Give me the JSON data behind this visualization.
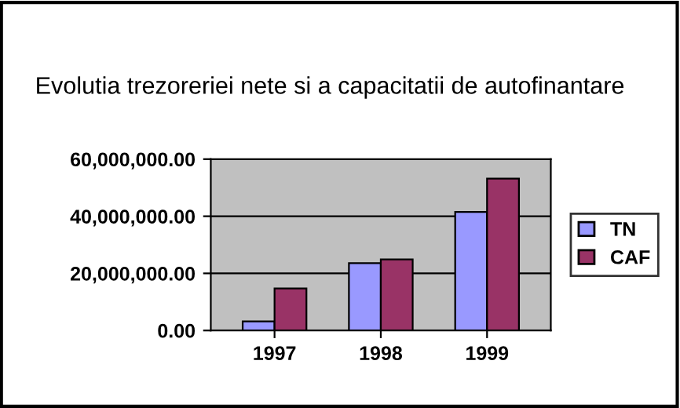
{
  "chart_data": {
    "type": "bar",
    "title": "Evolutia trezoreriei nete si a capacitatii de autofinantare",
    "categories": [
      "1997",
      "1998",
      "1999"
    ],
    "series": [
      {
        "name": "TN",
        "color": "#9999ff",
        "values": [
          3200000,
          23600000,
          41500000
        ]
      },
      {
        "name": "CAF",
        "color": "#993366",
        "values": [
          14700000,
          24900000,
          53200000
        ]
      }
    ],
    "ylim": [
      0,
      60000000
    ],
    "yticks": [
      {
        "value": 0,
        "label": "0.00"
      },
      {
        "value": 20000000,
        "label": "20,000,000.00"
      },
      {
        "value": 40000000,
        "label": "40,000,000.00"
      },
      {
        "value": 60000000,
        "label": "60,000,000.00"
      }
    ],
    "grid": "y",
    "legend": "right"
  }
}
